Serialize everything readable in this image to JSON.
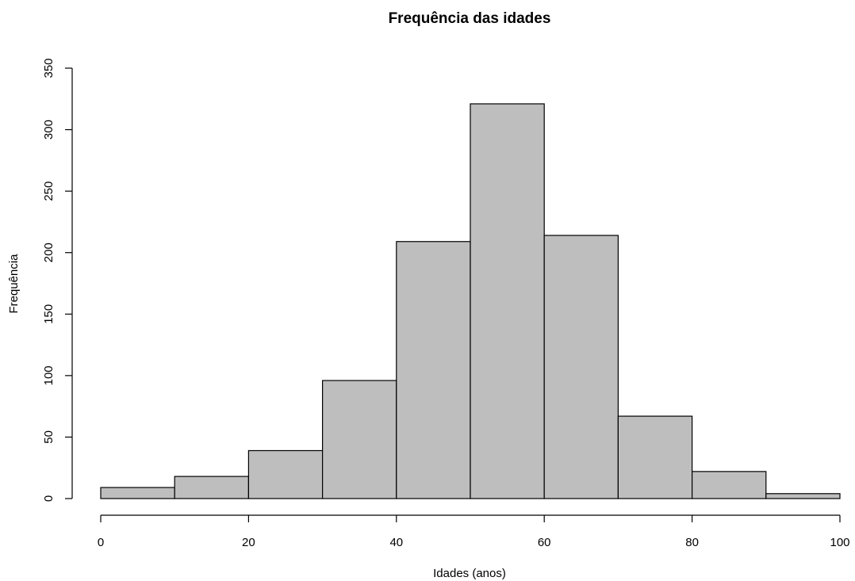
{
  "chart_data": {
    "type": "bar",
    "subtype": "histogram",
    "title": "Frequência das idades",
    "xlabel": "Idades (anos)",
    "ylabel": "Frequência",
    "bins": [
      {
        "from": 0,
        "to": 10,
        "count": 9
      },
      {
        "from": 10,
        "to": 20,
        "count": 18
      },
      {
        "from": 20,
        "to": 30,
        "count": 39
      },
      {
        "from": 30,
        "to": 40,
        "count": 96
      },
      {
        "from": 40,
        "to": 50,
        "count": 209
      },
      {
        "from": 50,
        "to": 60,
        "count": 321
      },
      {
        "from": 60,
        "to": 70,
        "count": 214
      },
      {
        "from": 70,
        "to": 80,
        "count": 67
      },
      {
        "from": 80,
        "to": 90,
        "count": 22
      },
      {
        "from": 90,
        "to": 100,
        "count": 4
      }
    ],
    "xlim": [
      0,
      100
    ],
    "ylim": [
      0,
      350
    ],
    "xticks": [
      "0",
      "20",
      "40",
      "60",
      "80",
      "100"
    ],
    "yticks": [
      "0",
      "50",
      "100",
      "150",
      "200",
      "250",
      "300",
      "350"
    ],
    "bar_color": "#bebebe",
    "edge_color": "#000000",
    "grid": false,
    "legend": "none"
  }
}
